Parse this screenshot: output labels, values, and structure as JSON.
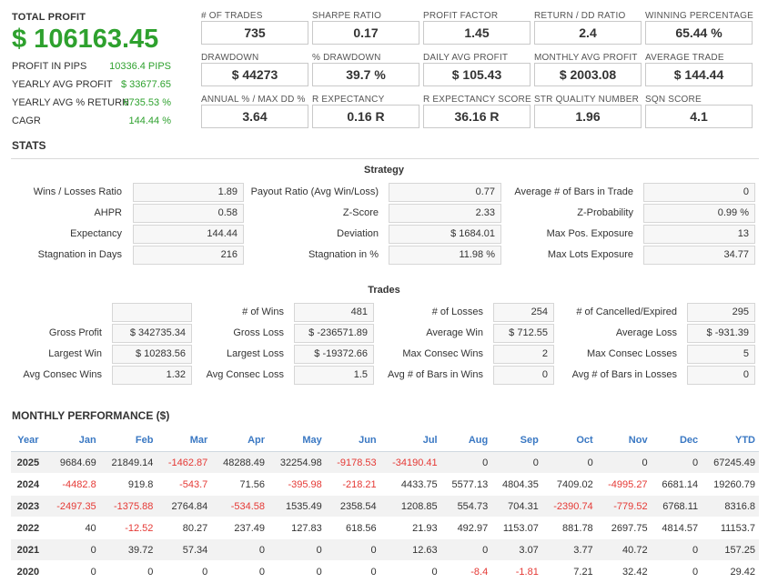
{
  "summary": {
    "total_profit_label": "TOTAL PROFIT",
    "total_profit_value": "$ 106163.45",
    "rows": [
      {
        "label": "PROFIT IN PIPS",
        "value": "10336.4 PIPS"
      },
      {
        "label": "YEARLY AVG PROFIT",
        "value": "$ 33677.65"
      },
      {
        "label": "YEARLY AVG % RETURN",
        "value": "6735.53 %"
      },
      {
        "label": "CAGR",
        "value": "144.44 %"
      }
    ]
  },
  "metrics": [
    {
      "label": "# OF TRADES",
      "value": "735"
    },
    {
      "label": "SHARPE RATIO",
      "value": "0.17"
    },
    {
      "label": "PROFIT FACTOR",
      "value": "1.45"
    },
    {
      "label": "RETURN / DD RATIO",
      "value": "2.4"
    },
    {
      "label": "WINNING PERCENTAGE",
      "value": "65.44 %"
    },
    {
      "label": "DRAWDOWN",
      "value": "$ 44273"
    },
    {
      "label": "% DRAWDOWN",
      "value": "39.7 %"
    },
    {
      "label": "DAILY AVG PROFIT",
      "value": "$ 105.43"
    },
    {
      "label": "MONTHLY AVG PROFIT",
      "value": "$ 2003.08"
    },
    {
      "label": "AVERAGE TRADE",
      "value": "$ 144.44"
    },
    {
      "label": "ANNUAL % / MAX DD %",
      "value": "3.64"
    },
    {
      "label": "R EXPECTANCY",
      "value": "0.16 R"
    },
    {
      "label": "R EXPECTANCY SCORE",
      "value": "36.16 R"
    },
    {
      "label": "STR QUALITY NUMBER",
      "value": "1.96"
    },
    {
      "label": "SQN SCORE",
      "value": "4.1"
    }
  ],
  "stats": {
    "title": "STATS",
    "strategy_title": "Strategy",
    "strategy": [
      {
        "label": "Wins / Losses Ratio",
        "value": "1.89"
      },
      {
        "label": "Payout Ratio (Avg Win/Loss)",
        "value": "0.77"
      },
      {
        "label": "Average # of Bars in Trade",
        "value": "0"
      },
      {
        "label": "AHPR",
        "value": "0.58"
      },
      {
        "label": "Z-Score",
        "value": "2.33"
      },
      {
        "label": "Z-Probability",
        "value": "0.99 %"
      },
      {
        "label": "Expectancy",
        "value": "144.44"
      },
      {
        "label": "Deviation",
        "value": "$ 1684.01"
      },
      {
        "label": "Max Pos. Exposure",
        "value": "13"
      },
      {
        "label": "Stagnation in Days",
        "value": "216"
      },
      {
        "label": "Stagnation in %",
        "value": "11.98 %"
      },
      {
        "label": "Max Lots Exposure",
        "value": "34.77"
      }
    ],
    "trades_title": "Trades",
    "trades": [
      {
        "label": "",
        "value": ""
      },
      {
        "label": "# of Wins",
        "value": "481"
      },
      {
        "label": "# of Losses",
        "value": "254"
      },
      {
        "label": "# of Cancelled/Expired",
        "value": "295"
      },
      {
        "label": "Gross Profit",
        "value": "$ 342735.34"
      },
      {
        "label": "Gross Loss",
        "value": "$ -236571.89"
      },
      {
        "label": "Average Win",
        "value": "$ 712.55"
      },
      {
        "label": "Average Loss",
        "value": "$ -931.39"
      },
      {
        "label": "Largest Win",
        "value": "$ 10283.56"
      },
      {
        "label": "Largest Loss",
        "value": "$ -19372.66"
      },
      {
        "label": "Max Consec Wins",
        "value": "2"
      },
      {
        "label": "Max Consec Losses",
        "value": "5"
      },
      {
        "label": "Avg Consec Wins",
        "value": "1.32"
      },
      {
        "label": "Avg Consec Loss",
        "value": "1.5"
      },
      {
        "label": "Avg # of Bars in Wins",
        "value": "0"
      },
      {
        "label": "Avg # of Bars in Losses",
        "value": "0"
      }
    ]
  },
  "monthly": {
    "title": "MONTHLY PERFORMANCE ($)",
    "headers": [
      "Year",
      "Jan",
      "Feb",
      "Mar",
      "Apr",
      "May",
      "Jun",
      "Jul",
      "Aug",
      "Sep",
      "Oct",
      "Nov",
      "Dec",
      "YTD"
    ],
    "rows": [
      [
        "2025",
        "9684.69",
        "21849.14",
        "-1462.87",
        "48288.49",
        "32254.98",
        "-9178.53",
        "-34190.41",
        "0",
        "0",
        "0",
        "0",
        "0",
        "67245.49"
      ],
      [
        "2024",
        "-4482.8",
        "919.8",
        "-543.7",
        "71.56",
        "-395.98",
        "-218.21",
        "4433.75",
        "5577.13",
        "4804.35",
        "7409.02",
        "-4995.27",
        "6681.14",
        "19260.79"
      ],
      [
        "2023",
        "-2497.35",
        "-1375.88",
        "2764.84",
        "-534.58",
        "1535.49",
        "2358.54",
        "1208.85",
        "554.73",
        "704.31",
        "-2390.74",
        "-779.52",
        "6768.11",
        "8316.8"
      ],
      [
        "2022",
        "40",
        "-12.52",
        "80.27",
        "237.49",
        "127.83",
        "618.56",
        "21.93",
        "492.97",
        "1153.07",
        "881.78",
        "2697.75",
        "4814.57",
        "11153.7"
      ],
      [
        "2021",
        "0",
        "39.72",
        "57.34",
        "0",
        "0",
        "0",
        "12.63",
        "0",
        "3.07",
        "3.77",
        "40.72",
        "0",
        "157.25"
      ],
      [
        "2020",
        "0",
        "0",
        "0",
        "0",
        "0",
        "0",
        "0",
        "-8.4",
        "-1.81",
        "7.21",
        "32.42",
        "0",
        "29.42"
      ]
    ]
  },
  "colors": {
    "accent_green": "#2ea12e",
    "negative_red": "#e53935",
    "header_blue": "#3a78c3"
  }
}
